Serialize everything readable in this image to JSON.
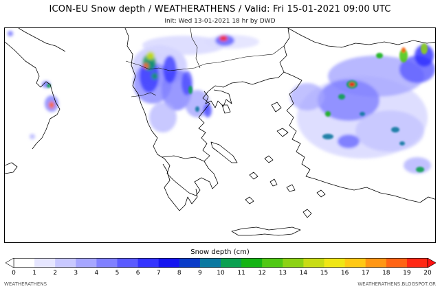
{
  "header": {
    "title": "ICON-EU Snow depth / WEATHERATHENS / Valid: Fri 15-01-2021 09:00 UTC",
    "subtitle": "Init: Wed 13-01-2021 18 hr by DWD"
  },
  "colorbar": {
    "label": "Snow depth (cm)",
    "ticks": [
      "0",
      "1",
      "2",
      "3",
      "4",
      "5",
      "6",
      "7",
      "8",
      "9",
      "10",
      "11",
      "12",
      "13",
      "14",
      "15",
      "16",
      "17",
      "18",
      "19",
      "20"
    ],
    "under_color": "#ffffff",
    "over_color": "#ff1010",
    "colors": [
      "#ffffff",
      "#e6e6ff",
      "#c8c8ff",
      "#a6a6ff",
      "#8080ff",
      "#5a5aff",
      "#3333ff",
      "#1414f0",
      "#0a3cc8",
      "#0a78a0",
      "#0aa050",
      "#14b414",
      "#50c814",
      "#8cd214",
      "#c8dc14",
      "#f0e614",
      "#ffc814",
      "#ff9614",
      "#ff6414",
      "#ff2814"
    ]
  },
  "footer": {
    "left": "WEATHERATHENS",
    "right": "WEATHERATHENS.BLOGSPOT.GR"
  }
}
